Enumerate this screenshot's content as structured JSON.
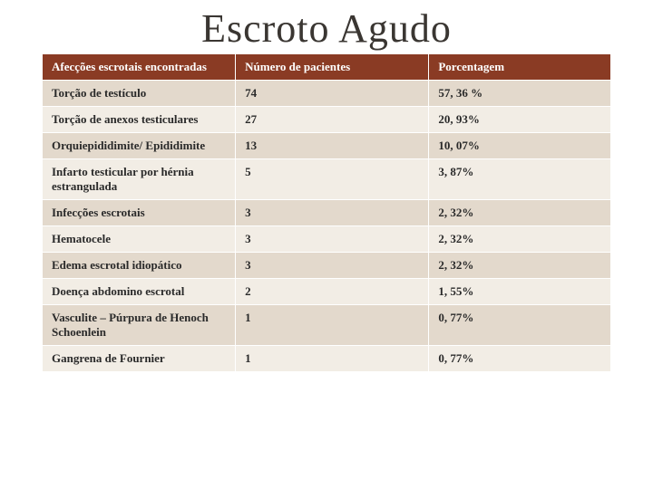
{
  "title": "Escroto Agudo",
  "table": {
    "columns": [
      "Afecções escrotais encontradas",
      "Número de pacientes",
      "Porcentagem"
    ],
    "rows": [
      [
        "Torção de testículo",
        "74",
        "57, 36 %"
      ],
      [
        "Torção de anexos testiculares",
        "27",
        "20, 93%"
      ],
      [
        "Orquiepididimite/ Epididimite",
        "13",
        "10, 07%"
      ],
      [
        "Infarto testicular por hérnia estrangulada",
        "5",
        "3, 87%"
      ],
      [
        "Infecções escrotais",
        "3",
        "2, 32%"
      ],
      [
        "Hematocele",
        "3",
        "2, 32%"
      ],
      [
        "Edema escrotal idiopático",
        "3",
        "2, 32%"
      ],
      [
        "Doença abdomino escrotal",
        "2",
        "1, 55%"
      ],
      [
        "Vasculite – Púrpura de Henoch Schoenlein",
        "1",
        "0, 77%"
      ],
      [
        "Gangrena de Fournier",
        "1",
        "0, 77%"
      ]
    ]
  },
  "colors": {
    "header_bg": "#8a3b24",
    "header_text": "#ffffff",
    "row_odd_bg": "#e3d9cc",
    "row_even_bg": "#f2ede5",
    "title_color": "#3a3632"
  }
}
